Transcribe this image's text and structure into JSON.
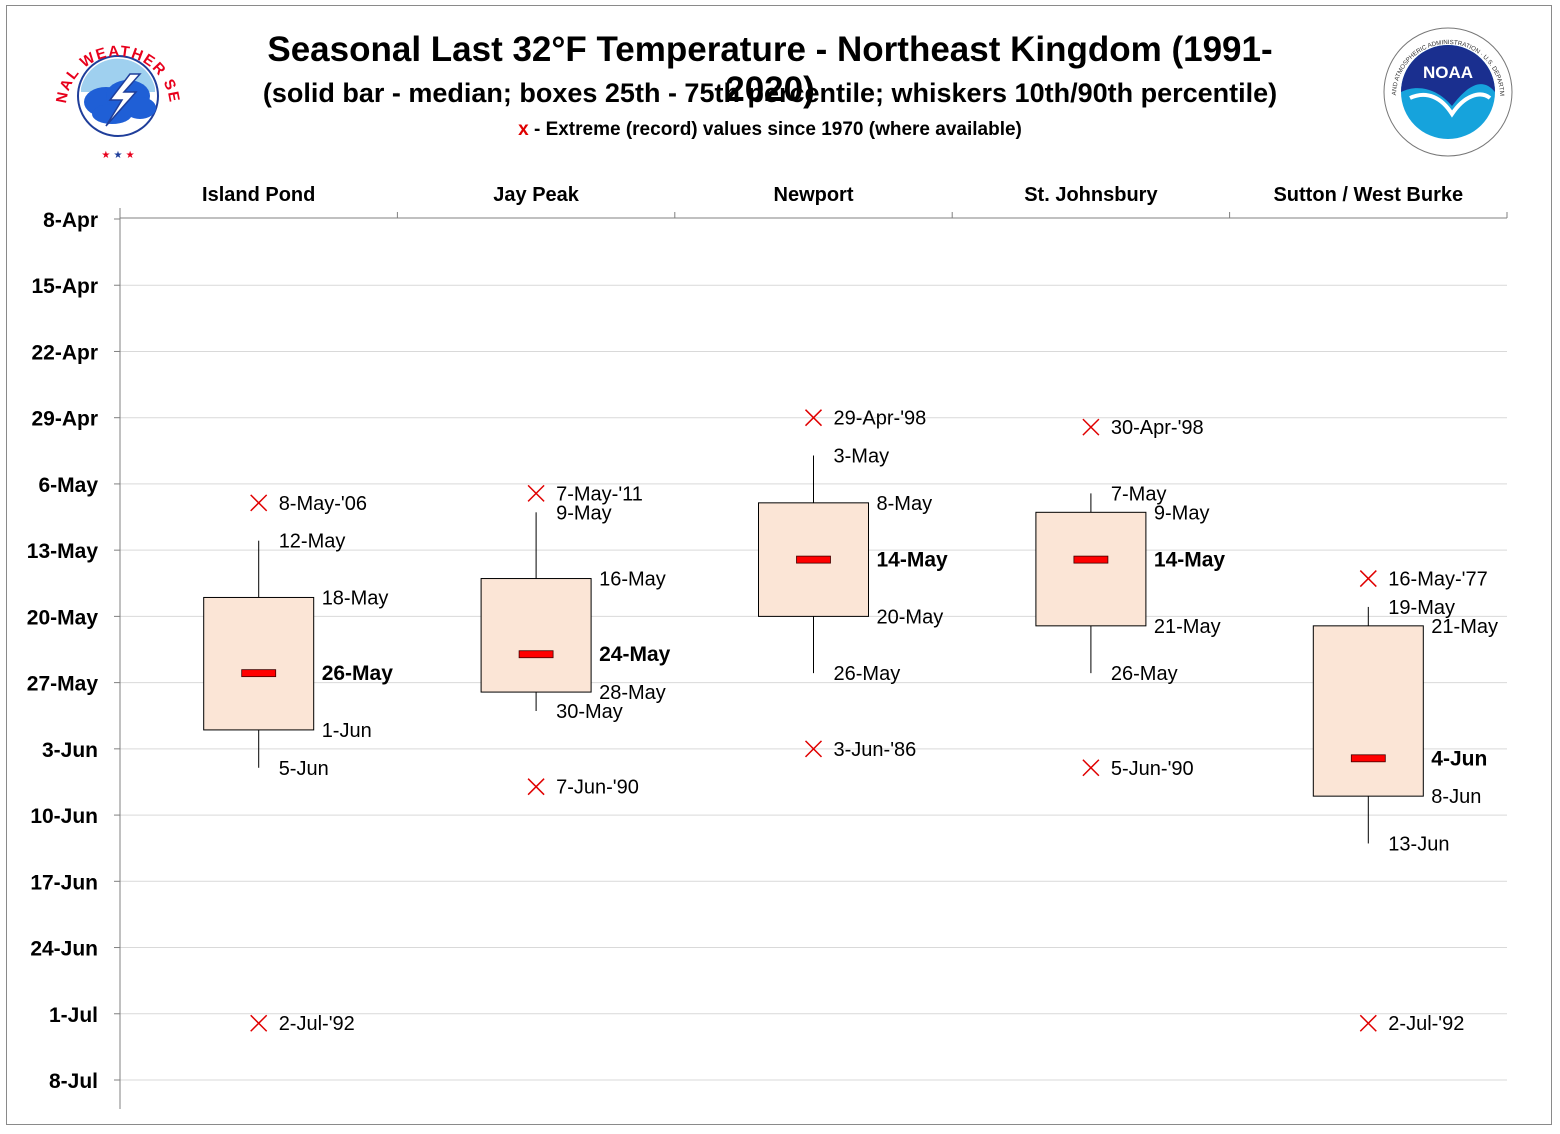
{
  "title": "Seasonal Last 32°F Temperature - Northeast Kingdom (1991-2020)",
  "subtitle": "(solid bar - median; boxes 25th - 75th percentile; whiskers 10th/90th percentile)",
  "note_marker": "x",
  "note_text": " - Extreme (record) values since 1970 (where available)",
  "logos": {
    "nws_text": "NATIONAL WEATHER SERVICE",
    "noaa_text": "NOAA",
    "noaa_ring_text": "NATIONAL OCEANIC AND ATMOSPHERIC ADMINISTRATION · U.S. DEPARTMENT OF COMMERCE"
  },
  "colors": {
    "box_fill": "#fbe5d6",
    "median": "#ff0000",
    "extreme": "#e00000",
    "grid": "#d9d9d9",
    "axis": "#808080"
  },
  "chart_data": {
    "type": "box",
    "y_axis_reversed": true,
    "y_ticks": [
      "8-Apr",
      "15-Apr",
      "22-Apr",
      "29-Apr",
      "6-May",
      "13-May",
      "20-May",
      "27-May",
      "3-Jun",
      "10-Jun",
      "17-Jun",
      "24-Jun",
      "1-Jul",
      "8-Jul"
    ],
    "y_range": [
      "8-Apr",
      "8-Jul"
    ],
    "categories": [
      "Island Pond",
      "Jay Peak",
      "Newport",
      "St. Johnsbury",
      "Sutton / West Burke"
    ],
    "series": [
      {
        "station": "Island Pond",
        "p10": "12-May",
        "p25": "18-May",
        "median": "26-May",
        "p75": "1-Jun",
        "p90": "5-Jun",
        "early_record": "8-May-'06",
        "late_record": "2-Jul-'92",
        "early_record_date": "8-May",
        "late_record_date": "2-Jul"
      },
      {
        "station": "Jay Peak",
        "p10": "9-May",
        "p25": "16-May",
        "median": "24-May",
        "p75": "28-May",
        "p90": "30-May",
        "early_record": "7-May-'11",
        "late_record": "7-Jun-'90",
        "early_record_date": "7-May",
        "late_record_date": "7-Jun"
      },
      {
        "station": "Newport",
        "p10": "3-May",
        "p25": "8-May",
        "median": "14-May",
        "p75": "20-May",
        "p90": "26-May",
        "early_record": "29-Apr-'98",
        "late_record": "3-Jun-'86",
        "early_record_date": "29-Apr",
        "late_record_date": "3-Jun"
      },
      {
        "station": "St. Johnsbury",
        "p10": "7-May",
        "p25": "9-May",
        "median": "14-May",
        "p75": "21-May",
        "p90": "26-May",
        "early_record": "30-Apr-'98",
        "late_record": "5-Jun-'90",
        "early_record_date": "30-Apr",
        "late_record_date": "5-Jun"
      },
      {
        "station": "Sutton / West Burke",
        "p10": "19-May",
        "p25": "21-May",
        "median": "4-Jun",
        "p75": "8-Jun",
        "p90": "13-Jun",
        "early_record": "16-May-'77",
        "late_record": "2-Jul-'92",
        "early_record_date": "16-May",
        "late_record_date": "2-Jul"
      }
    ]
  }
}
